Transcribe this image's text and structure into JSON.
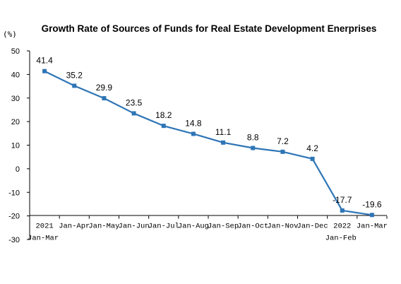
{
  "chart_data": {
    "type": "line",
    "title": "Growth Rate of Sources of Funds for Real Estate Development Enerprises",
    "unit_label": "(%)",
    "xlabel": "",
    "ylabel": "",
    "ylim": [
      -30,
      50
    ],
    "yticks": [
      50,
      40,
      30,
      20,
      10,
      0,
      -10,
      -20,
      -30
    ],
    "grid": false,
    "legend": "none",
    "categories": [
      [
        "2021",
        "Jan-Mar"
      ],
      [
        "Jan-Apr"
      ],
      [
        "Jan-May"
      ],
      [
        "Jan-Jun"
      ],
      [
        "Jan-Jul"
      ],
      [
        "Jan-Aug"
      ],
      [
        "Jan-Sep"
      ],
      [
        "Jan-Oct"
      ],
      [
        "Jan-Nov"
      ],
      [
        "Jan-Dec"
      ],
      [
        "2022",
        "Jan-Feb"
      ],
      [
        "Jan-Mar"
      ]
    ],
    "series": [
      {
        "values": [
          41.4,
          35.2,
          29.9,
          23.5,
          18.2,
          14.8,
          11.1,
          8.8,
          7.2,
          4.2,
          -17.7,
          -19.6
        ],
        "labels": [
          "41.4",
          "35.2",
          "29.9",
          "23.5",
          "18.2",
          "14.8",
          "11.1",
          "8.8",
          "7.2",
          "4.2",
          "-17.7",
          "-19.6"
        ],
        "color": "#2e75b6"
      }
    ]
  }
}
